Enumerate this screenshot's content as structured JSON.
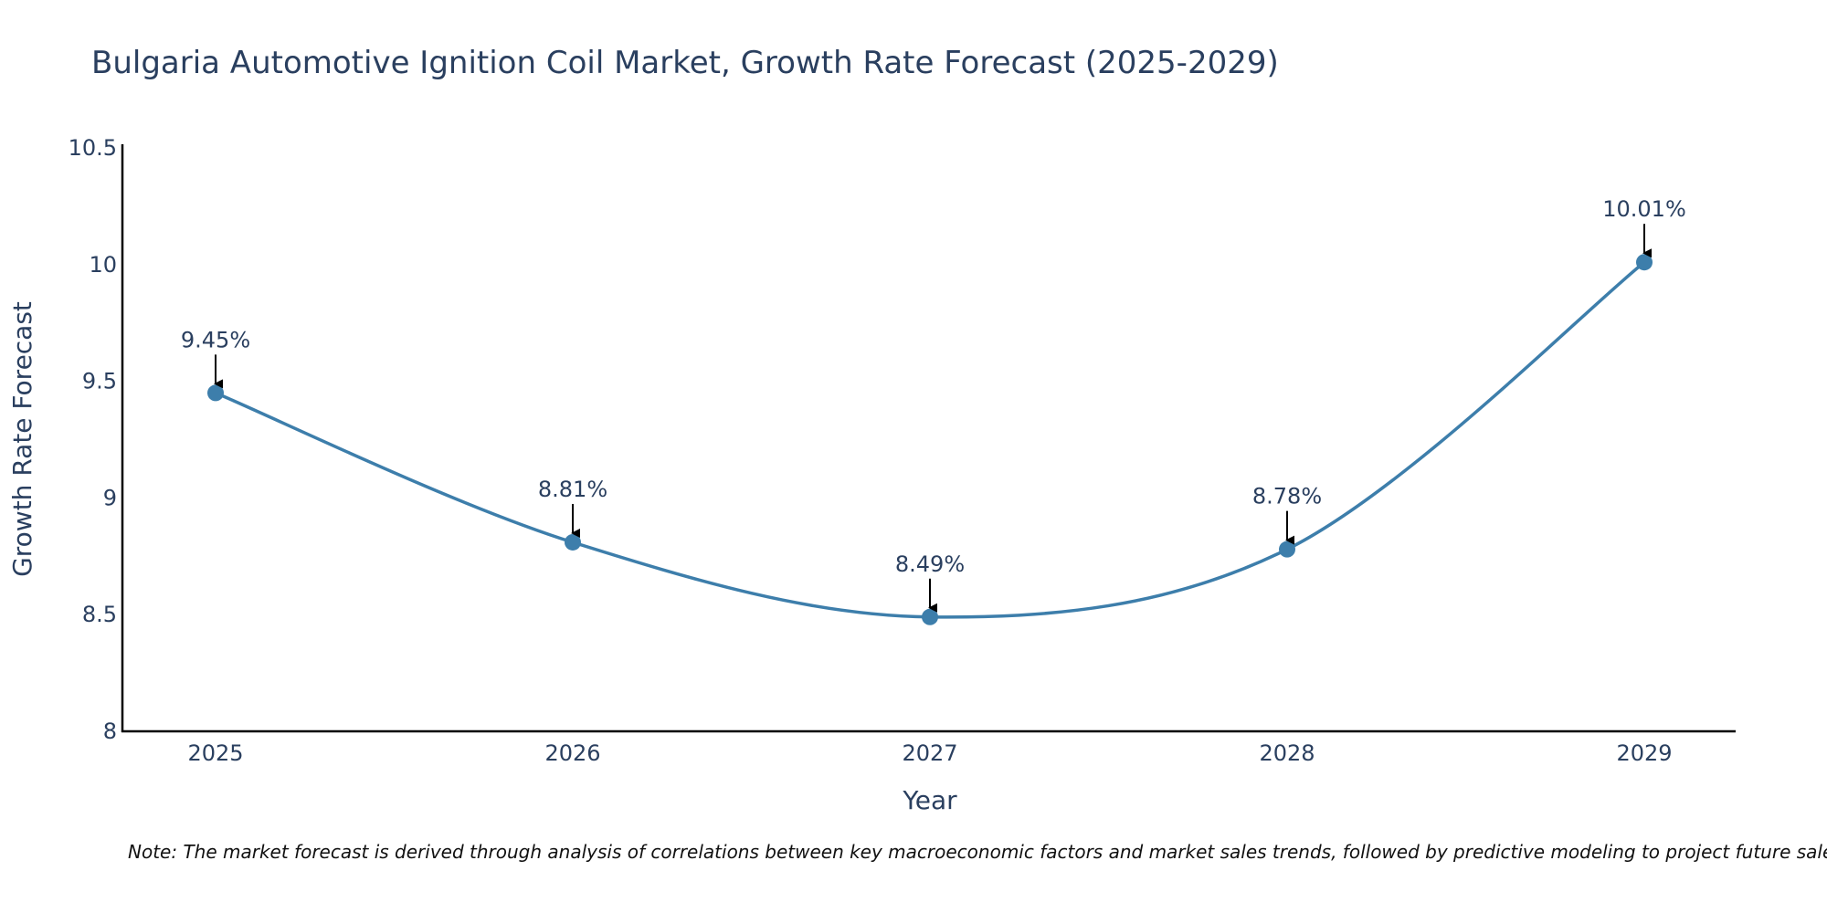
{
  "chart_data": {
    "type": "line",
    "title": "Bulgaria Automotive Ignition Coil Market, Growth Rate Forecast (2025-2029)",
    "xlabel": "Year",
    "ylabel": "Growth Rate Forecast",
    "categories": [
      "2025",
      "2026",
      "2027",
      "2028",
      "2029"
    ],
    "values": [
      9.45,
      8.81,
      8.49,
      8.78,
      10.01
    ],
    "data_labels": [
      "9.45%",
      "8.81%",
      "8.49%",
      "8.78%",
      "10.01%"
    ],
    "ylim": [
      8,
      10.5
    ],
    "y_ticks": [
      8,
      8.5,
      9,
      9.5,
      10,
      10.5
    ],
    "y_tick_labels": [
      "8",
      "8.5",
      "9",
      "9.5",
      "10",
      "10.5"
    ],
    "line_shape": "spline",
    "grid": false,
    "annotations_with_arrows": true
  },
  "colors": {
    "series": "#3d7eab",
    "marker": "#3d7eab",
    "axis": "#000000",
    "text": "#2a3f5f",
    "arrow": "#000000"
  },
  "note": "Note: The market forecast is derived through analysis of correlations between key macroeconomic factors and market sales trends, followed by predictive modeling to project future sales."
}
